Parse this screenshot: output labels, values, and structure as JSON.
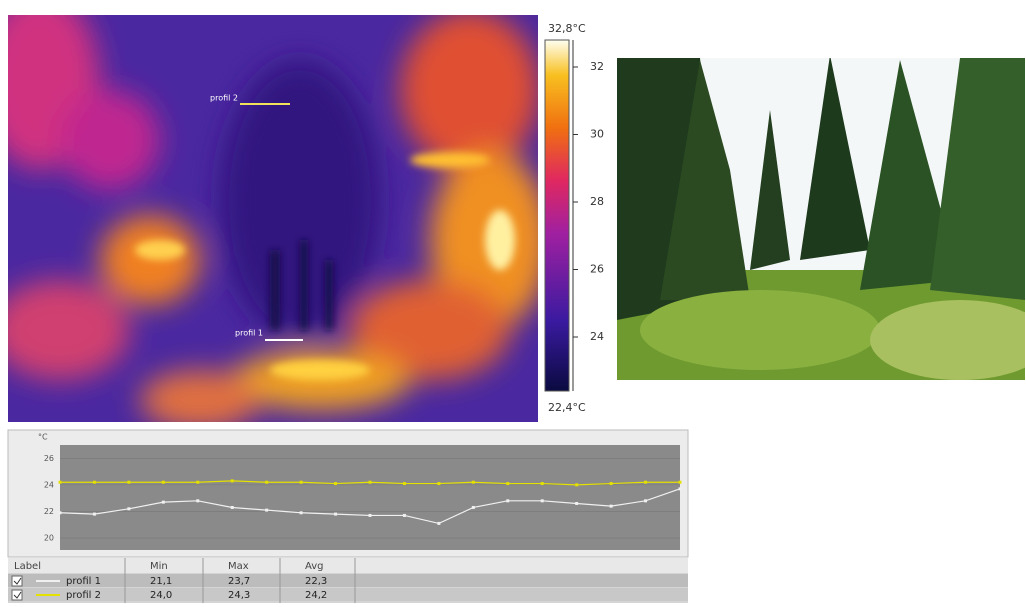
{
  "thermal_image": {
    "profiles": [
      {
        "label": "profil 2",
        "color": "#f2e25a"
      },
      {
        "label": "profil 1",
        "color": "#ffffff"
      }
    ]
  },
  "color_scale": {
    "max": {
      "value": 32.8,
      "label": "32,8°C"
    },
    "min": {
      "value": 22.4,
      "label": "22,4°C"
    },
    "ticks": [
      24,
      26,
      28,
      30,
      32
    ]
  },
  "profile_chart": {
    "type": "line",
    "y_label": "°C",
    "ylim": [
      19.1,
      27
    ],
    "yticks": [
      20,
      22,
      24,
      26
    ],
    "grid": true,
    "series": [
      {
        "color": "#f0f0f0",
        "values": [
          21.9,
          21.8,
          22.2,
          22.7,
          22.8,
          22.3,
          22.1,
          21.9,
          21.8,
          21.7,
          21.7,
          21.1,
          22.3,
          22.8,
          22.8,
          22.6,
          22.4,
          22.8,
          23.7
        ]
      },
      {
        "color": "#e4e000",
        "values": [
          24.2,
          24.2,
          24.2,
          24.2,
          24.2,
          24.3,
          24.2,
          24.2,
          24.1,
          24.2,
          24.1,
          24.1,
          24.2,
          24.1,
          24.1,
          24.0,
          24.1,
          24.2,
          24.2
        ]
      }
    ]
  },
  "profile_table": {
    "headers": [
      "Label",
      "Min",
      "Max",
      "Avg"
    ],
    "rows": [
      {
        "label": "profil 1",
        "min": "21,1",
        "max": "23,7",
        "avg": "22,3"
      },
      {
        "label": "profil 2",
        "min": "24,0",
        "max": "24,3",
        "avg": "24,2"
      }
    ]
  }
}
